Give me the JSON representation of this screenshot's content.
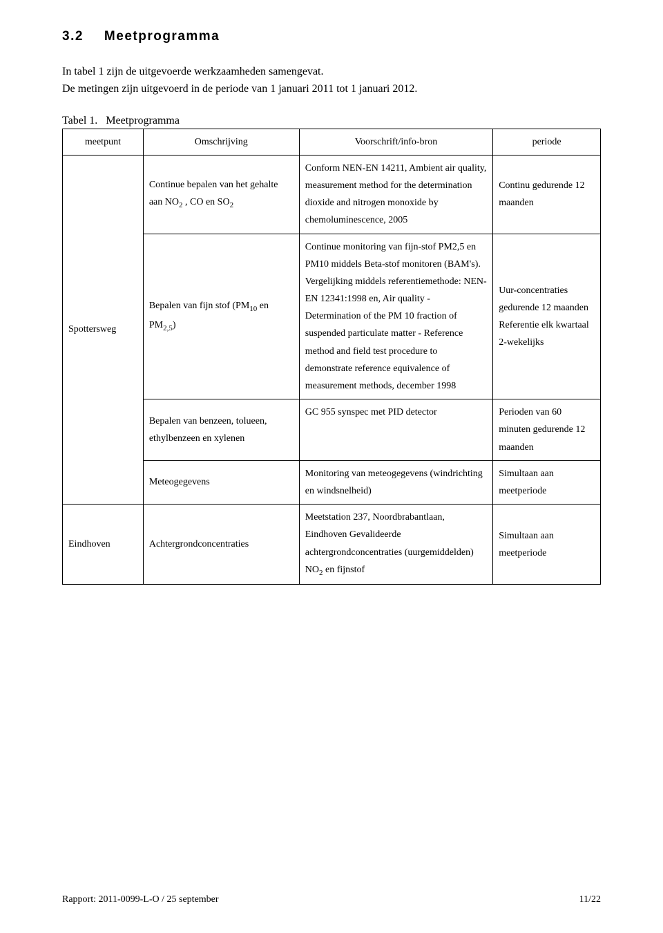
{
  "section": {
    "number": "3.2",
    "title": "Meetprogramma"
  },
  "intro": "In tabel 1 zijn de uitgevoerde werkzaamheden samengevat.\nDe metingen zijn uitgevoerd in de periode van 1 januari 2011 tot 1 januari 2012.",
  "table": {
    "caption_prefix": "Tabel 1.",
    "caption_text": "Meetprogramma",
    "headers": {
      "c1": "meetpunt",
      "c2": "Omschrijving",
      "c3": "Voorschrift/info-bron",
      "c4": "periode"
    },
    "rows": [
      {
        "c1": "Spottersweg",
        "c1_rowspan": 4,
        "c2_html": "Continue bepalen van het gehalte aan NO<sub>2</sub> , CO en SO<sub>2</sub>",
        "c3": "Conform NEN-EN 14211, Ambient air quality, measurement method for the determination dioxide and nitrogen monoxide by chemoluminescence, 2005",
        "c4": "Continu gedurende 12 maanden"
      },
      {
        "c2_html": "Bepalen van fijn stof (PM<sub>10</sub> en PM<sub>2,5</sub>)",
        "c3": "Continue monitoring van fijn-stof PM2,5 en PM10 middels Beta-stof monitoren (BAM's). Vergelijking middels referentiemethode: NEN-EN 12341:1998 en, Air quality - Determination of the PM 10 fraction of suspended particulate matter - Reference method and field test procedure to demonstrate reference equivalence of measurement methods, december 1998",
        "c4": "Uur-concentraties gedurende 12 maanden Referentie elk kwartaal 2-wekelijks"
      },
      {
        "c2_html": "Bepalen van benzeen, tolueen, ethylbenzeen en xylenen",
        "c3": "GC 955 synspec met PID detector",
        "c4": "Perioden van 60 minuten gedurende 12 maanden"
      },
      {
        "c2_html": "Meteogegevens",
        "c3": "Monitoring van meteogegevens (windrichting en windsnelheid)",
        "c4": "Simultaan aan meetperiode"
      },
      {
        "c1": "Eindhoven",
        "c2_html": "Achtergrondconcentraties",
        "c3_html": "Meetstation 237, Noordbrabantlaan, Eindhoven Gevalideerde achtergrondconcentraties (uurgemiddelden) NO<sub>2</sub> en fijnstof",
        "c4": "Simultaan aan meetperiode"
      }
    ]
  },
  "footer": {
    "left": "Rapport: 2011-0099-L-O / 25 september",
    "right": "11/22"
  }
}
